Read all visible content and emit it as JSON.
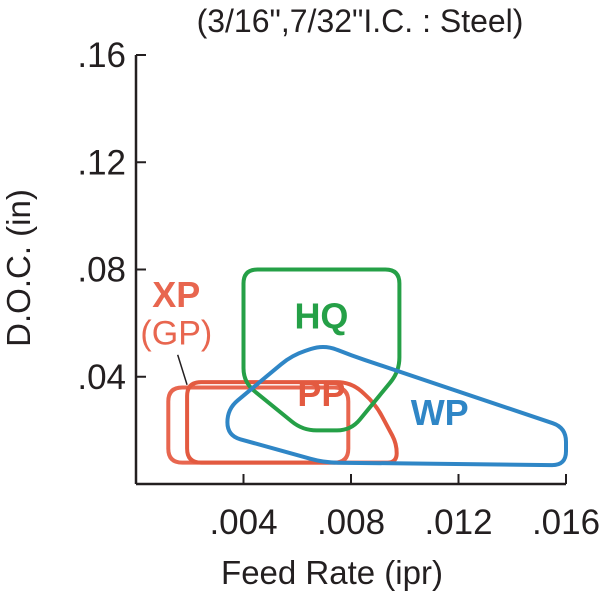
{
  "chart_data": {
    "type": "area",
    "title": "(3/16\",7/32\"I.C. : Steel)",
    "xlabel": "Feed Rate (ipr)",
    "ylabel": "D.O.C. (in)",
    "xlim": [
      0,
      0.016
    ],
    "ylim": [
      0,
      0.16
    ],
    "x_ticks": [
      {
        "value": 0.004,
        "label": ".004"
      },
      {
        "value": 0.008,
        "label": ".008"
      },
      {
        "value": 0.012,
        "label": ".012"
      },
      {
        "value": 0.016,
        "label": ".016"
      }
    ],
    "y_ticks": [
      {
        "value": 0.04,
        "label": ".04"
      },
      {
        "value": 0.08,
        "label": ".08"
      },
      {
        "value": 0.12,
        "label": ".12"
      },
      {
        "value": 0.16,
        "label": ".16"
      }
    ],
    "grid": false,
    "series": [
      {
        "name": "XP",
        "subname": "(GP)",
        "color": "#e8664f",
        "label_anchor": [
          0.0015,
          0.066
        ],
        "sub_anchor": [
          0.0015,
          0.052
        ],
        "leader": [
          [
            0.0017,
            0.037
          ],
          [
            0.0019,
            0.037
          ]
        ],
        "outline": [
          [
            0.0012,
            0.036
          ],
          [
            0.0079,
            0.036
          ],
          [
            0.0079,
            0.008
          ],
          [
            0.0012,
            0.008
          ]
        ]
      },
      {
        "name": "PP",
        "color": "#e35a40",
        "label_anchor": [
          0.0069,
          0.029
        ],
        "outline": [
          [
            0.0019,
            0.038
          ],
          [
            0.008,
            0.038
          ],
          [
            0.0089,
            0.03
          ],
          [
            0.0097,
            0.015
          ],
          [
            0.0097,
            0.008
          ],
          [
            0.0019,
            0.008
          ]
        ]
      },
      {
        "name": "HQ",
        "color": "#25a047",
        "label_anchor": [
          0.0069,
          0.058
        ],
        "outline": [
          [
            0.004,
            0.08
          ],
          [
            0.0098,
            0.08
          ],
          [
            0.0098,
            0.042
          ],
          [
            0.008,
            0.02
          ],
          [
            0.0062,
            0.02
          ],
          [
            0.004,
            0.038
          ]
        ]
      },
      {
        "name": "WP",
        "color": "#2f86c6",
        "label_anchor": [
          0.0113,
          0.022
        ],
        "outline": [
          [
            0.0034,
            0.028
          ],
          [
            0.0058,
            0.048
          ],
          [
            0.007,
            0.052
          ],
          [
            0.008,
            0.048
          ],
          [
            0.016,
            0.021
          ],
          [
            0.016,
            0.007
          ],
          [
            0.007,
            0.008
          ],
          [
            0.0034,
            0.018
          ]
        ]
      }
    ]
  }
}
